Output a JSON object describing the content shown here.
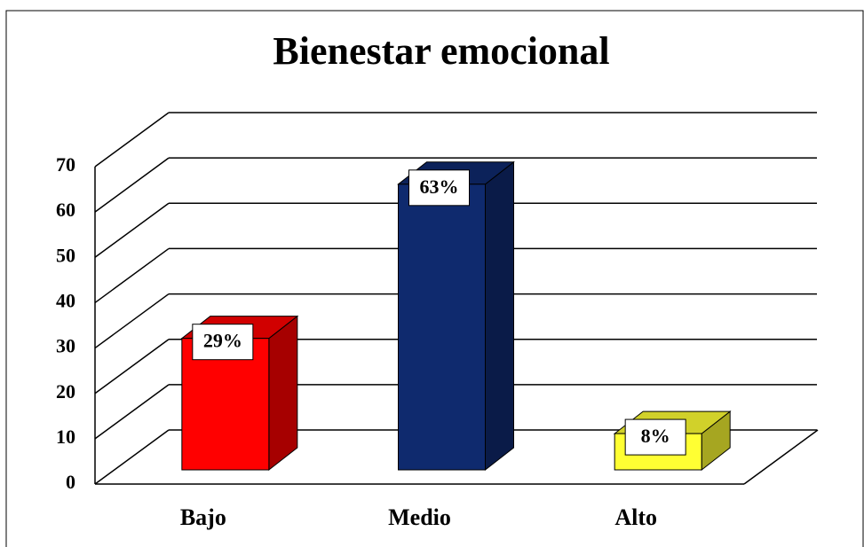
{
  "chart_data": {
    "type": "bar3d",
    "title": "Bienestar emocional",
    "categories": [
      "Bajo",
      "Medio",
      "Alto"
    ],
    "series": [
      {
        "name": "Bienestar emocional",
        "colors": [
          "#ff0000",
          "#0f2a6e",
          "#ffff33"
        ],
        "values": [
          29,
          63,
          8
        ],
        "value_labels": [
          "29%",
          "63%",
          "8%"
        ]
      }
    ],
    "ylim": [
      0,
      70
    ],
    "yticks": [
      0,
      10,
      20,
      30,
      40,
      50,
      60,
      70
    ],
    "grid": true
  }
}
